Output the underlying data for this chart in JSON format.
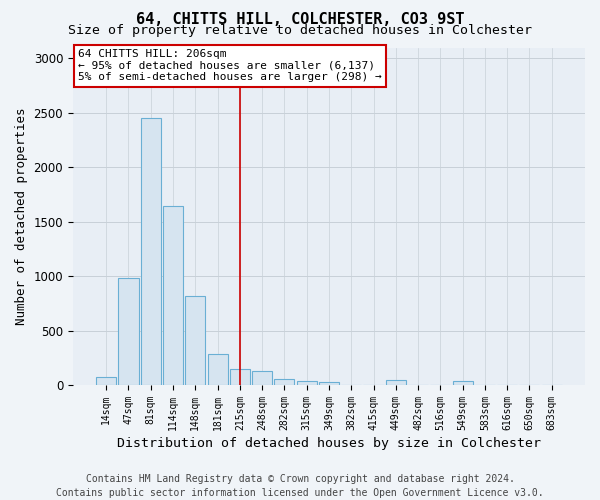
{
  "title": "64, CHITTS HILL, COLCHESTER, CO3 9ST",
  "subtitle": "Size of property relative to detached houses in Colchester",
  "xlabel": "Distribution of detached houses by size in Colchester",
  "ylabel": "Number of detached properties",
  "categories": [
    "14sqm",
    "47sqm",
    "81sqm",
    "114sqm",
    "148sqm",
    "181sqm",
    "215sqm",
    "248sqm",
    "282sqm",
    "315sqm",
    "349sqm",
    "382sqm",
    "415sqm",
    "449sqm",
    "482sqm",
    "516sqm",
    "549sqm",
    "583sqm",
    "616sqm",
    "650sqm",
    "683sqm"
  ],
  "values": [
    75,
    980,
    2450,
    1640,
    820,
    290,
    150,
    130,
    60,
    40,
    25,
    0,
    0,
    45,
    0,
    0,
    40,
    0,
    0,
    0,
    0
  ],
  "bar_color": "#d6e4f0",
  "bar_edge_color": "#6aafd4",
  "property_line_x": 6.0,
  "property_line_color": "#cc0000",
  "annotation_box_text": "64 CHITTS HILL: 206sqm\n← 95% of detached houses are smaller (6,137)\n5% of semi-detached houses are larger (298) →",
  "ylim": [
    0,
    3100
  ],
  "yticks": [
    0,
    500,
    1000,
    1500,
    2000,
    2500,
    3000
  ],
  "footer": "Contains HM Land Registry data © Crown copyright and database right 2024.\nContains public sector information licensed under the Open Government Licence v3.0.",
  "bg_color": "#f0f4f8",
  "plot_bg_color": "#e8eef5",
  "grid_color": "#c8d0d8",
  "title_fontsize": 11,
  "subtitle_fontsize": 9.5,
  "xlabel_fontsize": 9.5,
  "ylabel_fontsize": 9,
  "annot_fontsize": 8,
  "footer_fontsize": 7
}
